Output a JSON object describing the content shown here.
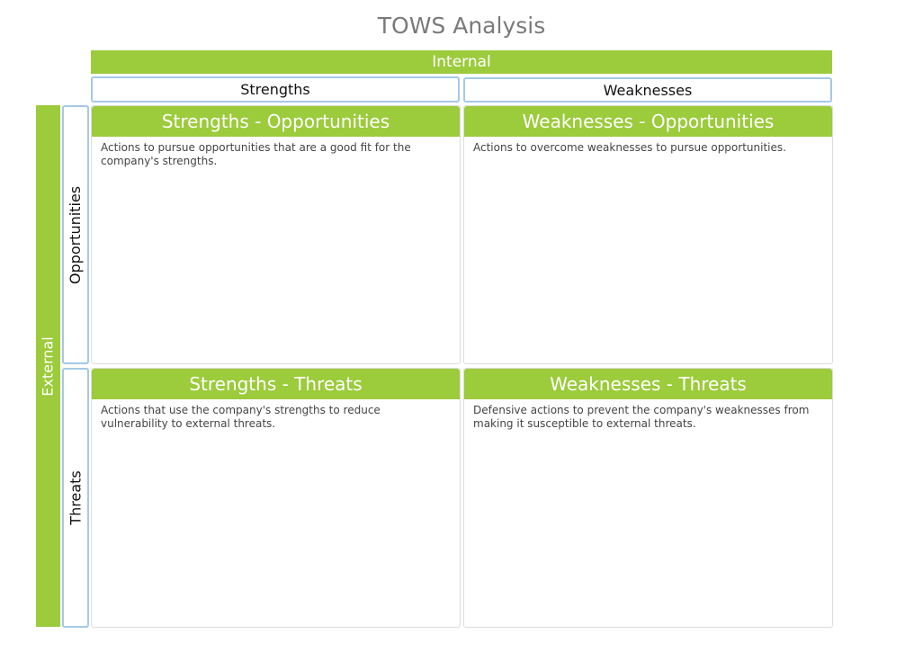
{
  "title": "TOWS Analysis",
  "internal": "Internal",
  "external": "External",
  "columns": [
    "Strengths",
    "Weaknesses"
  ],
  "rows": [
    "Opportunities",
    "Threats"
  ],
  "quadrants": [
    {
      "title": "Strengths - Opportunities",
      "text": "Actions to pursue opportunities that are a good fit for the company's strengths."
    },
    {
      "title": "Weaknesses - Opportunities",
      "text": "Actions to overcome weaknesses to pursue opportunities."
    },
    {
      "title": "Strengths - Threats",
      "text": "Actions that use the company's strengths to reduce vulnerability to external threats."
    },
    {
      "title": "Weaknesses - Threats",
      "text": "Defensive actions to prevent the company's weaknesses from making it susceptible to external threats."
    }
  ],
  "colors": {
    "accent": "#9ccb3c",
    "border": "#a5c8e8"
  }
}
